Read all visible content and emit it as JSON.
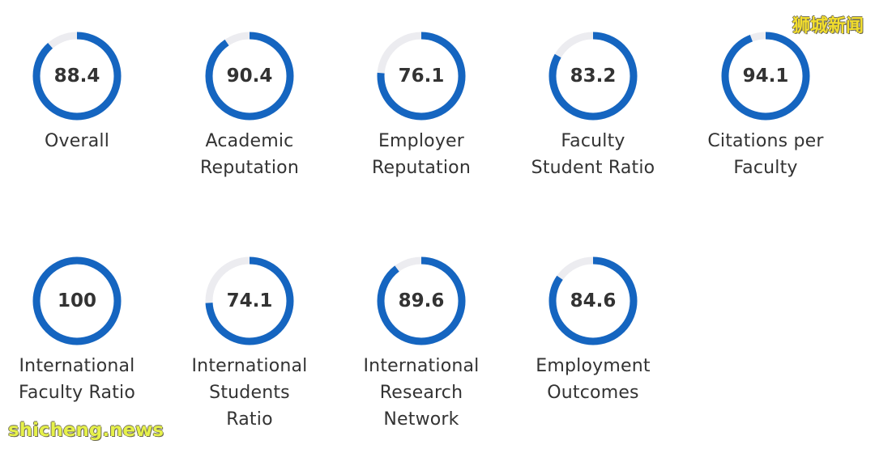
{
  "chart_data": {
    "type": "donut-gauges",
    "max": 100,
    "colors": {
      "arc": "#1565c0",
      "track": "#ececf0",
      "text": "#333333"
    },
    "metrics": [
      {
        "value": "88.4",
        "score": 88.4,
        "label": [
          "Overall"
        ]
      },
      {
        "value": "90.4",
        "score": 90.4,
        "label": [
          "Academic",
          "Reputation"
        ]
      },
      {
        "value": "76.1",
        "score": 76.1,
        "label": [
          "Employer",
          "Reputation"
        ]
      },
      {
        "value": "83.2",
        "score": 83.2,
        "label": [
          "Faculty",
          "Student Ratio"
        ]
      },
      {
        "value": "94.1",
        "score": 94.1,
        "label": [
          "Citations per",
          "Faculty"
        ]
      },
      {
        "value": "100",
        "score": 100,
        "label": [
          "International",
          "Faculty Ratio"
        ]
      },
      {
        "value": "74.1",
        "score": 74.1,
        "label": [
          "International",
          "Students",
          "Ratio"
        ]
      },
      {
        "value": "89.6",
        "score": 89.6,
        "label": [
          "International",
          "Research",
          "Network"
        ]
      },
      {
        "value": "84.6",
        "score": 84.6,
        "label": [
          "Employment",
          "Outcomes"
        ]
      }
    ]
  },
  "watermarks": {
    "top": "狮城新闻",
    "bottom": "shicheng.news"
  }
}
